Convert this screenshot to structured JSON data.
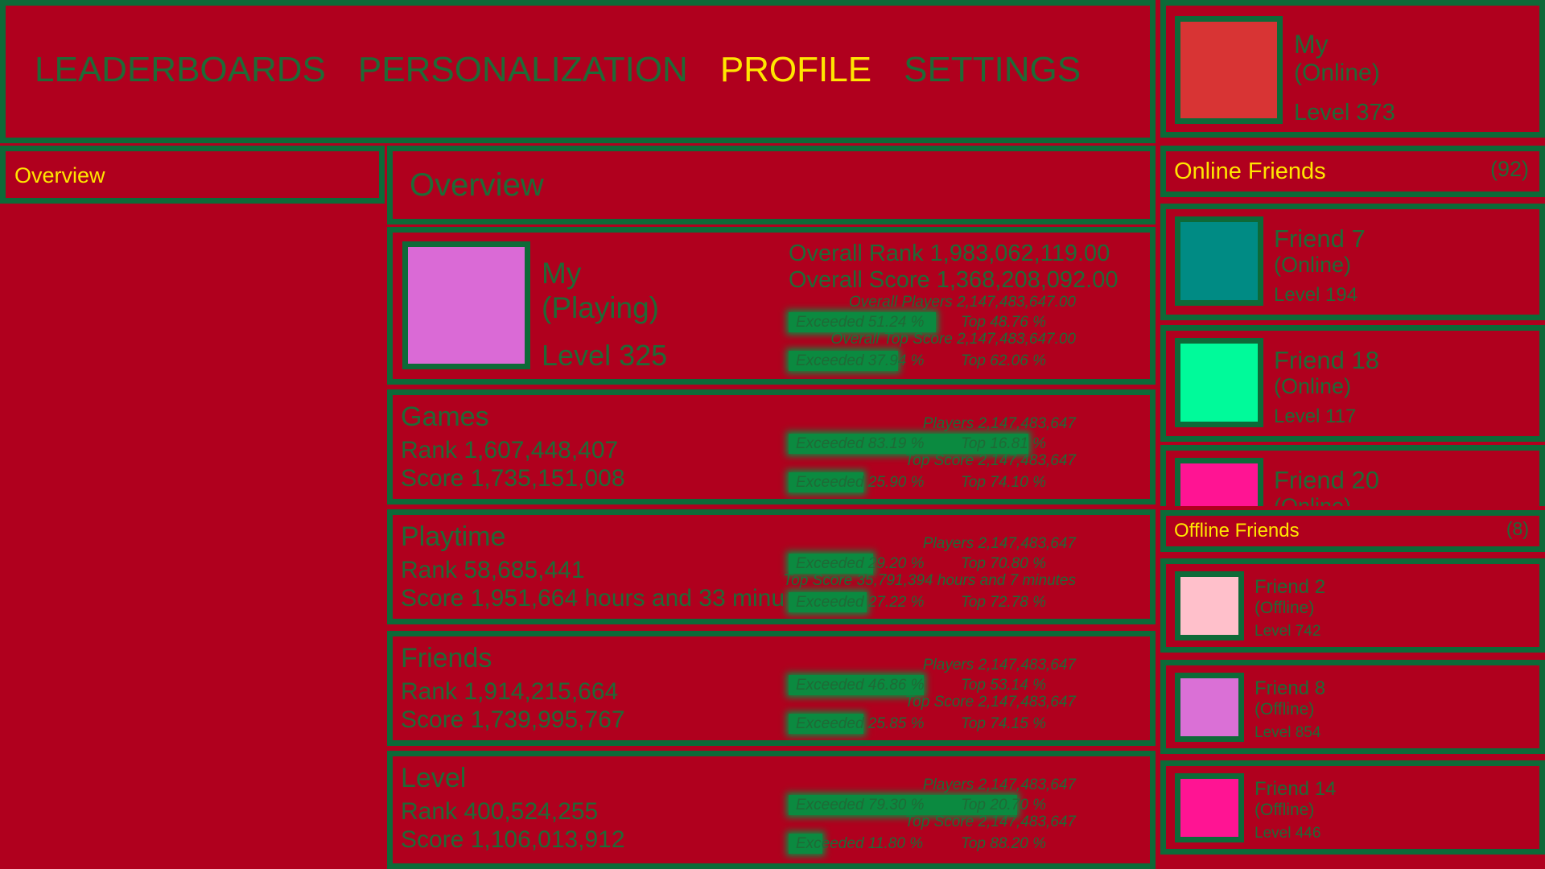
{
  "nav": [
    "LEADERBOARDS",
    "PERSONALIZATION",
    "PROFILE",
    "SETTINGS"
  ],
  "profile": {
    "name": "My",
    "status": "(Online)",
    "level": "Level 373",
    "color": "#d83434"
  },
  "sidebar": {
    "items": [
      "Overview"
    ]
  },
  "overview": {
    "title": "Overview",
    "player": {
      "name": "My",
      "status": "(Playing)",
      "level": "Level 325",
      "color": "#da6ad6"
    },
    "overall": {
      "rank": "Overall Rank 1,983,062,119.00",
      "score": "Overall Score 1,368,208,092.00",
      "players": "Overall Players 2,147,483,647.00",
      "top_score": "Overall Top Score 2,147,483,647.00",
      "bars": [
        {
          "exceeded": 51.24,
          "exceeded_label": "Exceeded 51.24 %",
          "top_label": "Top 48.76 %"
        },
        {
          "exceeded": 37.94,
          "exceeded_label": "Exceeded 37.94 %",
          "top_label": "Top 62.06 %"
        }
      ]
    },
    "categories": [
      {
        "title": "Games",
        "rank": "Rank 1,607,448,407",
        "score": "Score 1,735,151,008",
        "players": "Players 2,147,483,647",
        "top_score": "Top Score 2,147,483,647",
        "bars": [
          {
            "exceeded": 83.19,
            "exceeded_label": "Exceeded 83.19 %",
            "top_label": "Top 16.81 %"
          },
          {
            "exceeded": 25.9,
            "exceeded_label": "Exceeded 25.90 %",
            "top_label": "Top 74.10 %"
          }
        ]
      },
      {
        "title": "Playtime",
        "rank": "Rank 58,685,441",
        "score": "Score 1,951,664 hours and 33 minu",
        "players": "Players 2,147,483,647",
        "top_score": "Top Score 35,791,394 hours and 7 minutes",
        "bars": [
          {
            "exceeded": 29.2,
            "exceeded_label": "Exceeded 29.20 %",
            "top_label": "Top 70.80 %"
          },
          {
            "exceeded": 27.22,
            "exceeded_label": "Exceeded 27.22 %",
            "top_label": "Top 72.78 %"
          }
        ]
      },
      {
        "title": "Friends",
        "rank": "Rank 1,914,215,664",
        "score": "Score 1,739,995,767",
        "players": "Players 2,147,483,647",
        "top_score": "Top Score 2,147,483,647",
        "bars": [
          {
            "exceeded": 46.86,
            "exceeded_label": "Exceeded 46.86 %",
            "top_label": "Top 53.14 %"
          },
          {
            "exceeded": 25.85,
            "exceeded_label": "Exceeded 25.85 %",
            "top_label": "Top 74.15 %"
          }
        ]
      },
      {
        "title": "Level",
        "rank": "Rank 400,524,255",
        "score": "Score 1,106,013,912",
        "players": "Players 2,147,483,647",
        "top_score": "Top Score 2,147,483,647",
        "bars": [
          {
            "exceeded": 79.3,
            "exceeded_label": "Exceeded 79.30 %",
            "top_label": "Top 20.70 %"
          },
          {
            "exceeded": 11.8,
            "exceeded_label": "Exceeded 11.80 %",
            "top_label": "Top 88.20 %"
          }
        ]
      }
    ]
  },
  "online": {
    "title": "Online Friends",
    "count": "(92)",
    "friends": [
      {
        "name": "Friend 7",
        "status": "(Online)",
        "level": "Level 194",
        "color": "#008b84"
      },
      {
        "name": "Friend 18",
        "status": "(Online)",
        "level": "Level 117",
        "color": "#00fa9a"
      },
      {
        "name": "Friend 20",
        "status": "(Online)",
        "color": "#ff1493"
      }
    ]
  },
  "offline": {
    "title": "Offline Friends",
    "count": "(8)",
    "friends": [
      {
        "name": "Friend 2",
        "status": "(Offline)",
        "level": "Level 742",
        "color": "#ffc0cb"
      },
      {
        "name": "Friend 8",
        "status": "(Offline)",
        "level": "Level 854",
        "color": "#da70d6"
      },
      {
        "name": "Friend 14",
        "status": "(Offline)",
        "level": "Level 446",
        "color": "#ff1493"
      }
    ]
  }
}
